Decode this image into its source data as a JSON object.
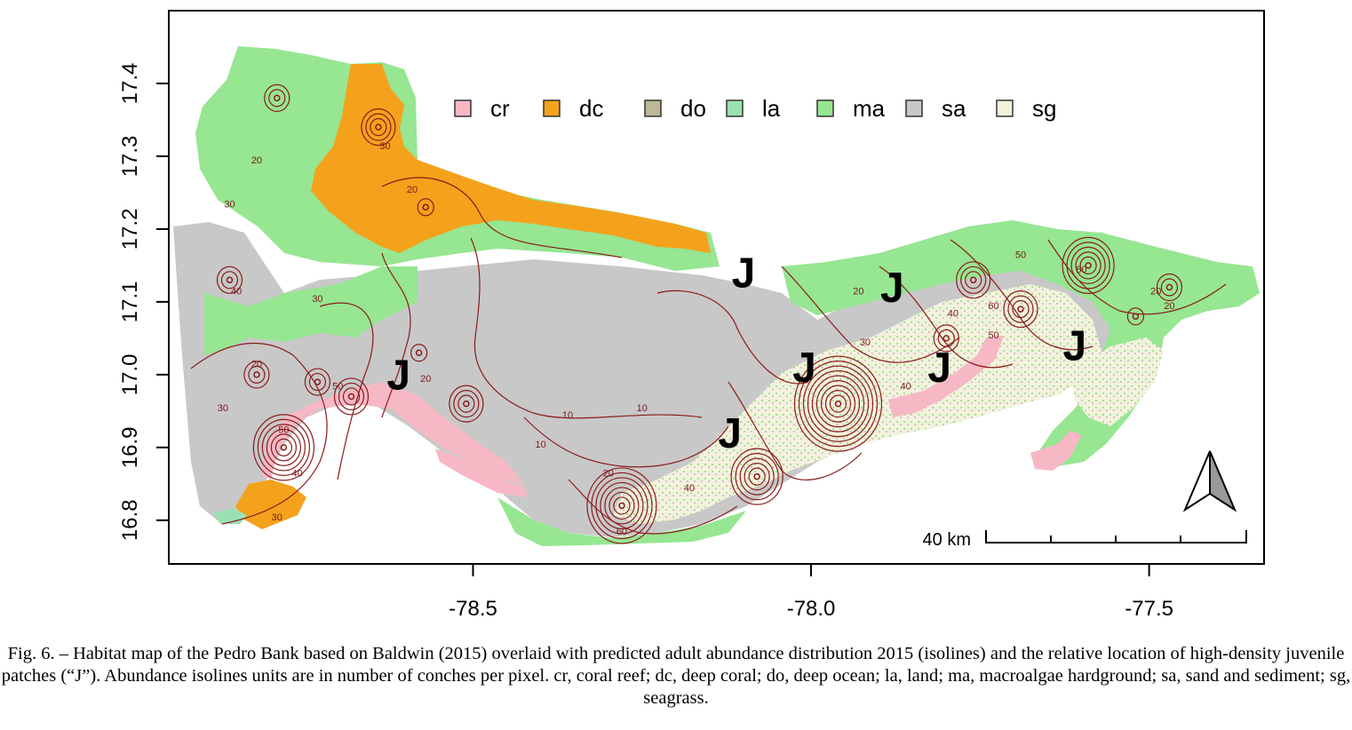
{
  "figure": {
    "caption": "Fig. 6. – Habitat map of the Pedro Bank based on Baldwin (2015) overlaid with predicted adult abundance distribution 2015 (isolines) and the relative location of high-density juvenile patches (“J”). Abundance isolines units are in number of conches per pixel. cr, coral reef; dc, deep coral; do, deep ocean; la, land; ma, macroalgae hardground; sa, sand and sediment; sg, seagrass."
  },
  "map": {
    "x_ticks": [
      {
        "value": -78.5,
        "label": "-78.5"
      },
      {
        "value": -78.0,
        "label": "-78.0"
      },
      {
        "value": -77.5,
        "label": "-77.5"
      }
    ],
    "y_ticks": [
      {
        "value": 16.8,
        "label": "16.8"
      },
      {
        "value": 16.9,
        "label": "16.9"
      },
      {
        "value": 17.0,
        "label": "17.0"
      },
      {
        "value": 17.1,
        "label": "17.1"
      },
      {
        "value": 17.2,
        "label": "17.2"
      },
      {
        "value": 17.3,
        "label": "17.3"
      },
      {
        "value": 17.4,
        "label": "17.4"
      }
    ],
    "x_range": [
      -78.95,
      -77.33
    ],
    "y_range": [
      16.74,
      17.5
    ],
    "legend": [
      {
        "code": "cr",
        "color": "#f6b8c4"
      },
      {
        "code": "dc",
        "color": "#f4a21c"
      },
      {
        "code": "do",
        "color": "#bdb896"
      },
      {
        "code": "la",
        "color": "#9be0b4"
      },
      {
        "code": "ma",
        "color": "#96e692"
      },
      {
        "code": "sa",
        "color": "#c8c8c8"
      },
      {
        "code": "sg",
        "color": "#f4f1dc"
      }
    ],
    "isoline_color": "#8b1a1a",
    "isoline_labels": [
      {
        "text": "20",
        "lon": -78.82,
        "lat": 17.29
      },
      {
        "text": "30",
        "lon": -78.86,
        "lat": 17.23
      },
      {
        "text": "40",
        "lon": -78.85,
        "lat": 17.11
      },
      {
        "text": "30",
        "lon": -78.73,
        "lat": 17.1
      },
      {
        "text": "20",
        "lon": -78.82,
        "lat": 17.01
      },
      {
        "text": "30",
        "lon": -78.87,
        "lat": 16.95
      },
      {
        "text": "50",
        "lon": -78.7,
        "lat": 16.98
      },
      {
        "text": "50",
        "lon": -78.78,
        "lat": 16.92
      },
      {
        "text": "40",
        "lon": -78.76,
        "lat": 16.86
      },
      {
        "text": "30",
        "lon": -78.79,
        "lat": 16.8
      },
      {
        "text": "20",
        "lon": -78.57,
        "lat": 16.99
      },
      {
        "text": "10",
        "lon": -78.4,
        "lat": 16.9
      },
      {
        "text": "10",
        "lon": -78.36,
        "lat": 16.94
      },
      {
        "text": "10",
        "lon": -78.25,
        "lat": 16.95
      },
      {
        "text": "20",
        "lon": -78.3,
        "lat": 16.86
      },
      {
        "text": "60",
        "lon": -78.28,
        "lat": 16.78
      },
      {
        "text": "40",
        "lon": -78.18,
        "lat": 16.84
      },
      {
        "text": "30",
        "lon": -78.63,
        "lat": 17.31
      },
      {
        "text": "20",
        "lon": -78.59,
        "lat": 17.25
      },
      {
        "text": "20",
        "lon": -77.93,
        "lat": 17.11
      },
      {
        "text": "30",
        "lon": -77.92,
        "lat": 17.04
      },
      {
        "text": "40",
        "lon": -77.86,
        "lat": 16.98
      },
      {
        "text": "60",
        "lon": -77.73,
        "lat": 17.09
      },
      {
        "text": "40",
        "lon": -77.79,
        "lat": 17.08
      },
      {
        "text": "50",
        "lon": -77.73,
        "lat": 17.05
      },
      {
        "text": "50",
        "lon": -77.69,
        "lat": 17.16
      },
      {
        "text": "80",
        "lon": -77.6,
        "lat": 17.14
      },
      {
        "text": "20",
        "lon": -77.49,
        "lat": 17.11
      },
      {
        "text": "20",
        "lon": -77.47,
        "lat": 17.09
      }
    ],
    "isoline_centers": [
      {
        "lon": -78.79,
        "lat": 17.38,
        "rings": 2
      },
      {
        "lon": -78.64,
        "lat": 17.34,
        "rings": 3
      },
      {
        "lon": -78.57,
        "lat": 17.23,
        "rings": 1
      },
      {
        "lon": -78.86,
        "lat": 17.13,
        "rings": 2
      },
      {
        "lon": -78.82,
        "lat": 17.0,
        "rings": 2
      },
      {
        "lon": -78.73,
        "lat": 16.99,
        "rings": 2
      },
      {
        "lon": -78.68,
        "lat": 16.97,
        "rings": 3
      },
      {
        "lon": -78.78,
        "lat": 16.9,
        "rings": 6
      },
      {
        "lon": -78.58,
        "lat": 17.03,
        "rings": 1
      },
      {
        "lon": -78.51,
        "lat": 16.96,
        "rings": 3
      },
      {
        "lon": -78.28,
        "lat": 16.82,
        "rings": 7
      },
      {
        "lon": -78.08,
        "lat": 16.86,
        "rings": 5
      },
      {
        "lon": -77.96,
        "lat": 16.96,
        "rings": 9
      },
      {
        "lon": -77.76,
        "lat": 17.13,
        "rings": 3
      },
      {
        "lon": -77.69,
        "lat": 17.09,
        "rings": 3
      },
      {
        "lon": -77.59,
        "lat": 17.15,
        "rings": 5
      },
      {
        "lon": -77.47,
        "lat": 17.12,
        "rings": 2
      },
      {
        "lon": -77.52,
        "lat": 17.08,
        "rings": 1
      },
      {
        "lon": -77.8,
        "lat": 17.05,
        "rings": 2
      }
    ],
    "juvenile_patches": [
      {
        "label": "J",
        "lon": -78.1,
        "lat": 17.12
      },
      {
        "label": "J",
        "lon": -77.88,
        "lat": 17.1
      },
      {
        "label": "J",
        "lon": -78.61,
        "lat": 16.98
      },
      {
        "label": "J",
        "lon": -78.01,
        "lat": 16.99
      },
      {
        "label": "J",
        "lon": -77.81,
        "lat": 16.99
      },
      {
        "label": "J",
        "lon": -77.61,
        "lat": 17.02
      },
      {
        "label": "J",
        "lon": -78.12,
        "lat": 16.9
      }
    ],
    "scale_bar": {
      "label": "40 km"
    },
    "north_arrow": {
      "icon": "north-arrow-icon"
    }
  }
}
